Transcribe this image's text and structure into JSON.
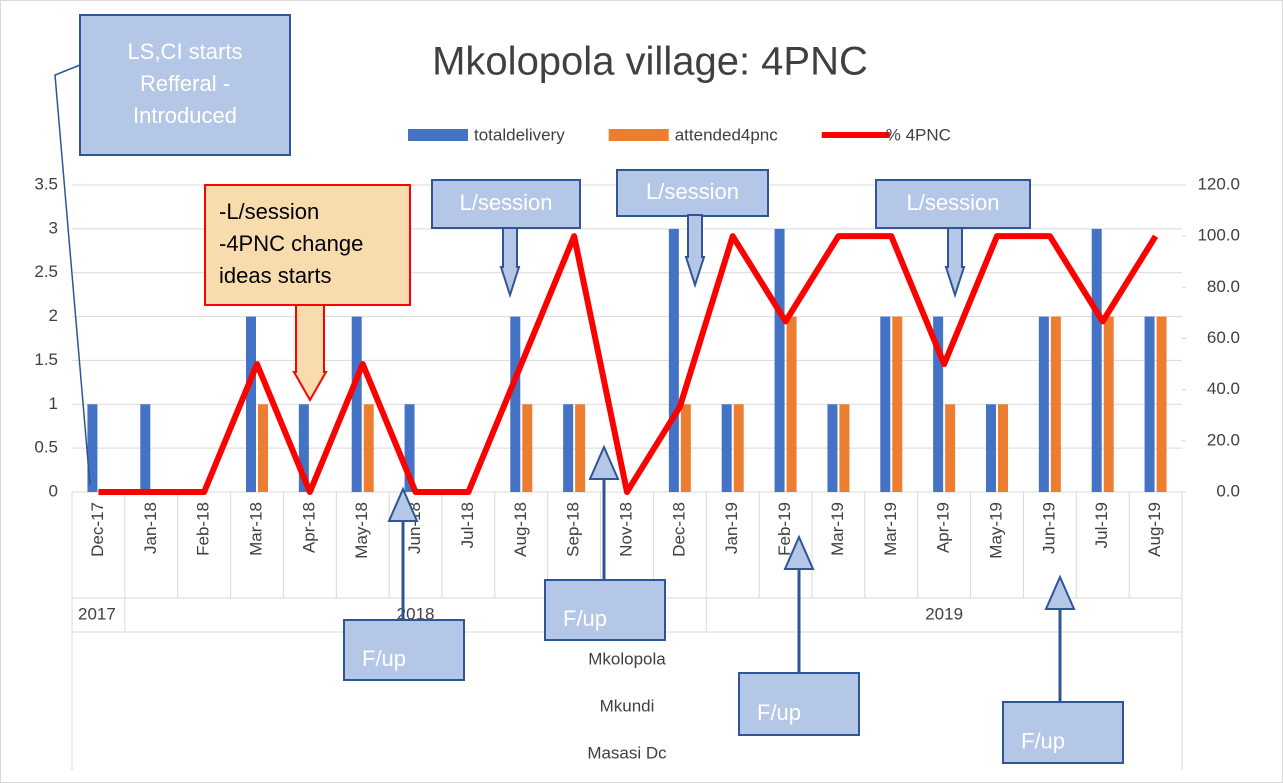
{
  "chart_data": {
    "type": "bar",
    "title": "Mkolopola village: 4PNC",
    "categories": [
      "Dec-17",
      "Jan-18",
      "Feb-18",
      "Mar-18",
      "Apr-18",
      "May-18",
      "Jun-18",
      "Jul-18",
      "Aug-18",
      "Sep-18",
      "Nov-18",
      "Dec-18",
      "Jan-19",
      "Feb-19",
      "Mar-19",
      "Mar-19",
      "Apr-19",
      "May-19",
      "Jun-19",
      "Jul-19",
      "Aug-19"
    ],
    "groups": [
      {
        "label": "2017",
        "count": 1
      },
      {
        "label": "2018",
        "count": 11
      },
      {
        "label": "2019",
        "count": 9
      }
    ],
    "outer_levels": [
      "Mkolopola",
      "Mkundi",
      "Masasi Dc"
    ],
    "series": [
      {
        "name": "totaldelivery",
        "type": "bar",
        "color": "#4472c4",
        "values": [
          1,
          1,
          0,
          2,
          1,
          2,
          1,
          0,
          2,
          1,
          0,
          3,
          1,
          3,
          1,
          2,
          2,
          1,
          2,
          3,
          2
        ]
      },
      {
        "name": "attended4pnc",
        "type": "bar",
        "color": "#ed7d31",
        "values": [
          0,
          0,
          0,
          1,
          0,
          1,
          0,
          0,
          1,
          1,
          0,
          1,
          1,
          2,
          1,
          2,
          1,
          1,
          2,
          2,
          2
        ]
      },
      {
        "name": "% 4PNC",
        "type": "line",
        "axis": "y2",
        "color": "#ff0000",
        "values": [
          0,
          0,
          0,
          50,
          0,
          50,
          0,
          0,
          50,
          100,
          0,
          33.3,
          100,
          66.7,
          100,
          100,
          50,
          100,
          100,
          66.7,
          100
        ]
      }
    ],
    "ylim": [
      0,
      3.5
    ],
    "yticks": [
      0,
      0.5,
      1,
      1.5,
      2,
      2.5,
      3,
      3.5
    ],
    "y2lim": [
      0,
      120
    ],
    "y2ticks": [
      {
        "value": 0,
        "label": "0.0"
      },
      {
        "value": 20,
        "label": "20.0"
      },
      {
        "value": 40,
        "label": "40.0"
      },
      {
        "value": 60,
        "label": "60.0"
      },
      {
        "value": 80,
        "label": "80.0"
      },
      {
        "value": 100,
        "label": "100.0"
      },
      {
        "value": 120,
        "label": "120.0"
      }
    ],
    "grid": true,
    "legend": "top",
    "annotations": [
      {
        "lines": [
          "LS,CI starts",
          "Refferal -",
          "Introduced"
        ]
      },
      {
        "lines": [
          "-L/session",
          "-4PNC change",
          "ideas starts"
        ]
      },
      {
        "lines": [
          "L/session"
        ]
      },
      {
        "lines": [
          "L/session"
        ]
      },
      {
        "lines": [
          "L/session"
        ]
      },
      {
        "lines": [
          "F/up"
        ]
      },
      {
        "lines": [
          "F/up"
        ]
      },
      {
        "lines": [
          "F/up"
        ]
      },
      {
        "lines": [
          "F/up"
        ]
      }
    ]
  }
}
